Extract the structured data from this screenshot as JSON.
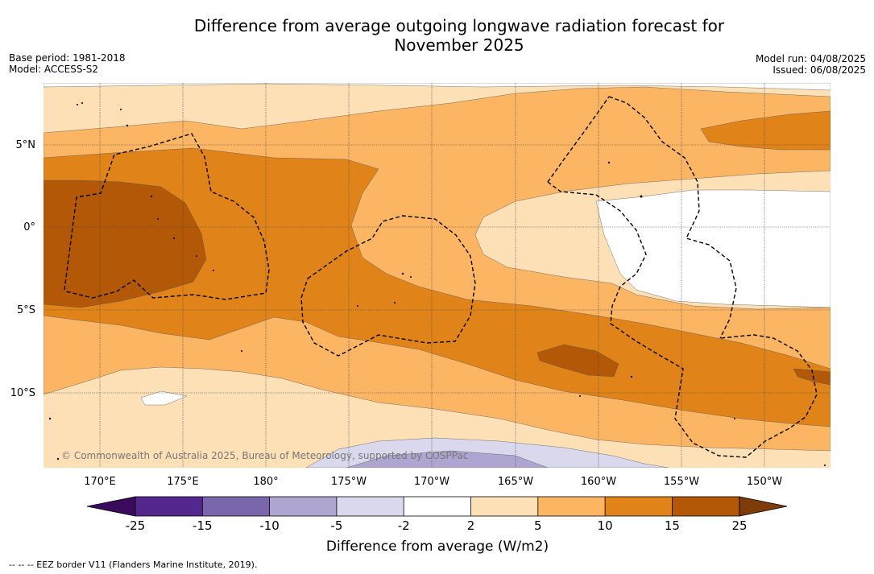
{
  "title": {
    "line1": "Difference from average outgoing longwave radiation forecast for",
    "line2": "November 2025"
  },
  "meta_left": {
    "base_period": "Base period: 1981-2018",
    "model": "Model: ACCESS-S2"
  },
  "meta_right": {
    "model_run": "Model run: 04/08/2025",
    "issued": "Issued: 06/08/2025"
  },
  "map": {
    "lat_labels": [
      "5°N",
      "0°",
      "5°S",
      "10°S"
    ],
    "lon_labels": [
      "170°E",
      "175°E",
      "180°",
      "175°W",
      "170°W",
      "165°W",
      "160°W",
      "155°W",
      "150°W"
    ],
    "copyright": "© Commonwealth of Australia 2025, Bureau of Meteorology, supported by COSPPac"
  },
  "colorbar": {
    "label": "Difference from average (W/m2)",
    "ticks": [
      "-25",
      "-15",
      "-10",
      "-5",
      "-2",
      "2",
      "5",
      "10",
      "15",
      "25"
    ],
    "colors": {
      "under": "#3a0a5c",
      "neg25": "#54278f",
      "neg15": "#7a66aa",
      "neg10": "#aea6d1",
      "neg5": "#d9d8ec",
      "neutral": "#ffffff",
      "pos2": "#fde0b6",
      "pos5": "#fbb563",
      "pos10": "#e08419",
      "pos15": "#b35806",
      "over": "#7f3b08"
    }
  },
  "footnote": "-- -- -- EEZ border V11 (Flanders Marine Institute, 2019)."
}
